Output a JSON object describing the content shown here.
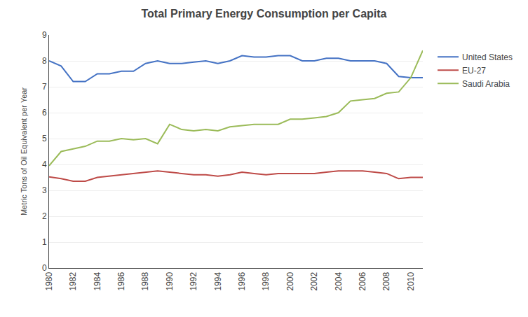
{
  "chart_data": {
    "type": "line",
    "title": "Total Primary Energy Consumption per Capita",
    "ylabel": "Metric Tons of Oil Equivalent per Year",
    "x": [
      1980,
      1981,
      1982,
      1983,
      1984,
      1985,
      1986,
      1987,
      1988,
      1989,
      1990,
      1991,
      1992,
      1993,
      1994,
      1995,
      1996,
      1997,
      1998,
      1999,
      2000,
      2001,
      2002,
      2003,
      2004,
      2005,
      2006,
      2007,
      2008,
      2009,
      2010,
      2011
    ],
    "series": [
      {
        "name": "United States",
        "color": "#4472C4",
        "values": [
          8.0,
          7.8,
          7.2,
          7.2,
          7.5,
          7.5,
          7.6,
          7.6,
          7.9,
          8.0,
          7.9,
          7.9,
          7.95,
          8.0,
          7.9,
          8.0,
          8.2,
          8.15,
          8.15,
          8.2,
          8.2,
          8.0,
          8.0,
          8.1,
          8.1,
          8.0,
          8.0,
          8.0,
          7.9,
          7.4,
          7.35,
          7.35
        ]
      },
      {
        "name": "EU-27",
        "color": "#BE4B48",
        "values": [
          3.52,
          3.45,
          3.35,
          3.35,
          3.5,
          3.55,
          3.6,
          3.65,
          3.7,
          3.75,
          3.7,
          3.65,
          3.6,
          3.6,
          3.55,
          3.6,
          3.7,
          3.65,
          3.6,
          3.65,
          3.65,
          3.65,
          3.65,
          3.7,
          3.75,
          3.75,
          3.75,
          3.7,
          3.65,
          3.45,
          3.5,
          3.5
        ]
      },
      {
        "name": "Saudi Arabia",
        "color": "#9BBB59",
        "values": [
          3.95,
          4.5,
          4.6,
          4.7,
          4.9,
          4.9,
          5.0,
          4.95,
          5.0,
          4.8,
          5.55,
          5.35,
          5.3,
          5.35,
          5.3,
          5.45,
          5.5,
          5.55,
          5.55,
          5.55,
          5.75,
          5.75,
          5.8,
          5.85,
          6.0,
          6.45,
          6.5,
          6.55,
          6.75,
          6.8,
          7.35,
          8.4
        ]
      }
    ],
    "xlim": [
      1980,
      2011
    ],
    "xticks": [
      1980,
      1982,
      1984,
      1986,
      1988,
      1990,
      1992,
      1994,
      1996,
      1998,
      2000,
      2002,
      2004,
      2006,
      2008,
      2010
    ],
    "ylim": [
      0,
      9
    ],
    "yticks": [
      0,
      1,
      2,
      3,
      4,
      5,
      6,
      7,
      8,
      9
    ],
    "grid": "y",
    "legend": "right"
  }
}
